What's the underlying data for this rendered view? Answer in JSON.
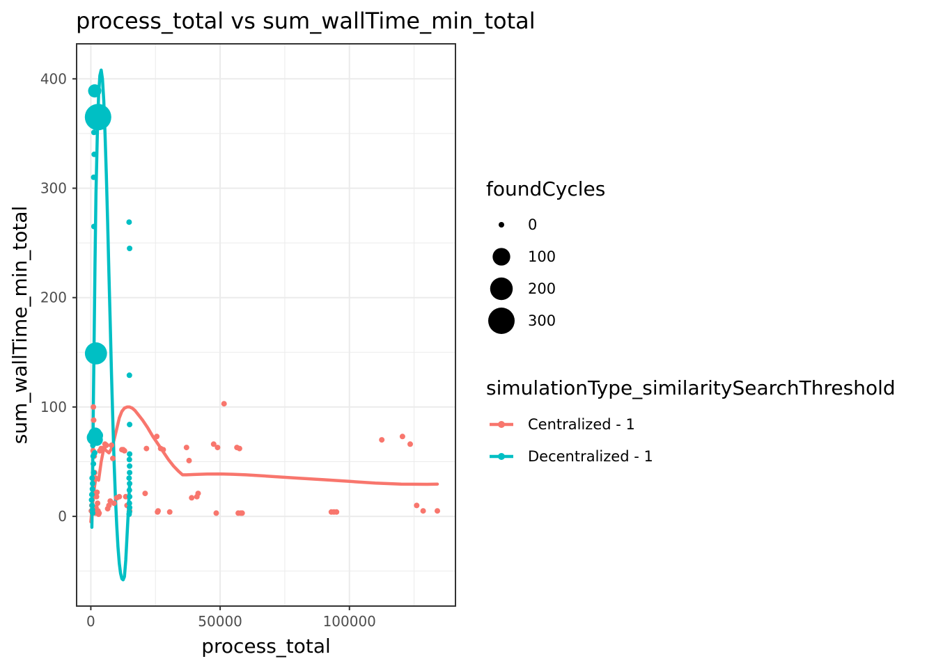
{
  "chart_data": {
    "type": "scatter",
    "title": "process_total  vs  sum_wallTime_min_total",
    "xlabel": "process_total",
    "ylabel": "sum_wallTime_min_total",
    "xlim": [
      -5500,
      141000
    ],
    "ylim": [
      -82,
      432
    ],
    "x_ticks": [
      0,
      50000,
      100000
    ],
    "x_tick_labels": [
      "0",
      "50000",
      "100000"
    ],
    "y_ticks": [
      0,
      100,
      200,
      300,
      400
    ],
    "y_tick_labels": [
      "0",
      "100",
      "200",
      "300",
      "400"
    ],
    "grid": true,
    "size_legend": {
      "title": "foundCycles",
      "entries": [
        {
          "label": "0",
          "value": 0
        },
        {
          "label": "100",
          "value": 100
        },
        {
          "label": "200",
          "value": 200
        },
        {
          "label": "300",
          "value": 300
        }
      ]
    },
    "color_legend": {
      "title": "simulationType_similaritySearchThreshold",
      "placement": "right"
    },
    "series": [
      {
        "name": "Centralized - 1",
        "color": "#F8766D",
        "points": [
          [
            200,
            5,
            0
          ],
          [
            400,
            10,
            0
          ],
          [
            500,
            15,
            0
          ],
          [
            600,
            20,
            0
          ],
          [
            700,
            25,
            0
          ],
          [
            800,
            30,
            0
          ],
          [
            900,
            60,
            0
          ],
          [
            1000,
            100,
            0
          ],
          [
            1100,
            88,
            0
          ],
          [
            1200,
            70,
            0
          ],
          [
            1300,
            55,
            0
          ],
          [
            1500,
            40,
            0
          ],
          [
            1700,
            35,
            0
          ],
          [
            1800,
            3,
            0
          ],
          [
            2000,
            8,
            0
          ],
          [
            2200,
            18,
            0
          ],
          [
            2400,
            22,
            0
          ],
          [
            2600,
            12,
            0
          ],
          [
            2800,
            5,
            0
          ],
          [
            3000,
            2,
            0
          ],
          [
            3200,
            3,
            0
          ],
          [
            3500,
            60,
            0
          ],
          [
            4000,
            62,
            0
          ],
          [
            5000,
            62,
            0
          ],
          [
            5500,
            66,
            0
          ],
          [
            6000,
            65,
            0
          ],
          [
            6500,
            7,
            0
          ],
          [
            7000,
            10,
            0
          ],
          [
            7500,
            14,
            0
          ],
          [
            8000,
            65,
            0
          ],
          [
            8500,
            53,
            0
          ],
          [
            9000,
            12,
            0
          ],
          [
            10000,
            17,
            0
          ],
          [
            11000,
            18,
            0
          ],
          [
            12000,
            61,
            0
          ],
          [
            12500,
            61,
            0
          ],
          [
            13000,
            60,
            0
          ],
          [
            13500,
            18,
            0
          ],
          [
            14000,
            10,
            0
          ],
          [
            15000,
            5,
            0
          ],
          [
            21000,
            21,
            0
          ],
          [
            21500,
            62,
            0
          ],
          [
            25500,
            73,
            0
          ],
          [
            25800,
            4,
            0
          ],
          [
            26000,
            5,
            0
          ],
          [
            27000,
            62,
            0
          ],
          [
            28000,
            61,
            0
          ],
          [
            30500,
            4,
            0
          ],
          [
            37000,
            63,
            0
          ],
          [
            38000,
            51,
            0
          ],
          [
            39000,
            17,
            0
          ],
          [
            41000,
            18,
            0
          ],
          [
            41500,
            21,
            0
          ],
          [
            47500,
            66,
            0
          ],
          [
            48500,
            3,
            0
          ],
          [
            49000,
            63,
            0
          ],
          [
            51500,
            103,
            0
          ],
          [
            56500,
            63,
            0
          ],
          [
            57000,
            3,
            0
          ],
          [
            57500,
            62,
            0
          ],
          [
            58000,
            3,
            0
          ],
          [
            58500,
            3,
            0
          ],
          [
            93000,
            4,
            0
          ],
          [
            94000,
            4,
            0
          ],
          [
            95000,
            4,
            0
          ],
          [
            112500,
            70,
            0
          ],
          [
            120500,
            73,
            0
          ],
          [
            123500,
            66,
            0
          ],
          [
            126000,
            10,
            0
          ],
          [
            128500,
            5,
            0
          ],
          [
            134000,
            5,
            0
          ]
        ],
        "smooth": [
          [
            0,
            -5
          ],
          [
            1000,
            20
          ],
          [
            2000,
            36
          ],
          [
            3000,
            33
          ],
          [
            4000,
            50
          ],
          [
            5000,
            62
          ],
          [
            6000,
            60
          ],
          [
            7000,
            58
          ],
          [
            8000,
            62
          ],
          [
            9000,
            70
          ],
          [
            10000,
            80
          ],
          [
            11000,
            90
          ],
          [
            12000,
            96
          ],
          [
            13000,
            99
          ],
          [
            14000,
            100
          ],
          [
            15000,
            100
          ],
          [
            16000,
            99
          ],
          [
            17000,
            97
          ],
          [
            18000,
            94
          ],
          [
            19000,
            91
          ],
          [
            20000,
            88
          ],
          [
            22000,
            81
          ],
          [
            24000,
            73
          ],
          [
            26000,
            66
          ],
          [
            28000,
            59
          ],
          [
            30000,
            52
          ],
          [
            32000,
            46
          ],
          [
            34000,
            41
          ],
          [
            35500,
            38
          ],
          [
            37000,
            38
          ],
          [
            40000,
            38.3
          ],
          [
            45000,
            38.7
          ],
          [
            50000,
            38.8
          ],
          [
            55000,
            38.5
          ],
          [
            60000,
            38
          ],
          [
            70000,
            36.5
          ],
          [
            80000,
            35
          ],
          [
            90000,
            33.5
          ],
          [
            100000,
            32
          ],
          [
            110000,
            30.5
          ],
          [
            120000,
            29.5
          ],
          [
            130000,
            29.3
          ],
          [
            134000,
            29.5
          ]
        ]
      },
      {
        "name": "Decentralized - 1",
        "color": "#00BFC4",
        "points": [
          [
            1200,
            351,
            0
          ],
          [
            1300,
            331,
            0
          ],
          [
            1100,
            310,
            0
          ],
          [
            1200,
            265,
            0
          ],
          [
            1500,
            389,
            40
          ],
          [
            2800,
            365,
            300
          ],
          [
            2200,
            363,
            30
          ],
          [
            2000,
            149,
            190
          ],
          [
            800,
            65,
            0
          ],
          [
            900,
            55,
            0
          ],
          [
            1000,
            48,
            0
          ],
          [
            1100,
            40,
            0
          ],
          [
            500,
            35,
            0
          ],
          [
            700,
            30,
            0
          ],
          [
            600,
            25,
            0
          ],
          [
            400,
            20,
            0
          ],
          [
            300,
            15,
            0
          ],
          [
            500,
            10,
            0
          ],
          [
            600,
            6,
            0
          ],
          [
            700,
            3,
            0
          ],
          [
            1300,
            72,
            60
          ],
          [
            1700,
            75,
            45
          ],
          [
            2300,
            70,
            30
          ],
          [
            2600,
            74,
            20
          ],
          [
            900,
            68,
            0
          ],
          [
            1500,
            58,
            0
          ],
          [
            14800,
            269,
            0
          ],
          [
            15000,
            245,
            0
          ],
          [
            14900,
            129,
            0
          ],
          [
            15000,
            84,
            0
          ],
          [
            15000,
            57,
            0
          ],
          [
            14900,
            52,
            0
          ],
          [
            15000,
            46,
            0
          ],
          [
            15000,
            40,
            0
          ],
          [
            14800,
            35,
            0
          ],
          [
            15000,
            30,
            0
          ],
          [
            14900,
            24,
            0
          ],
          [
            15000,
            18,
            0
          ],
          [
            14900,
            12,
            0
          ],
          [
            15000,
            8,
            0
          ],
          [
            14900,
            4,
            0
          ],
          [
            14800,
            2,
            0
          ]
        ],
        "smooth": [
          [
            400,
            -10
          ],
          [
            600,
            20
          ],
          [
            800,
            60
          ],
          [
            1000,
            105
          ],
          [
            1300,
            170
          ],
          [
            1600,
            230
          ],
          [
            2000,
            295
          ],
          [
            2500,
            348
          ],
          [
            3000,
            385
          ],
          [
            3500,
            403
          ],
          [
            4000,
            408
          ],
          [
            4500,
            400
          ],
          [
            5000,
            380
          ],
          [
            5500,
            350
          ],
          [
            6000,
            312
          ],
          [
            6500,
            268
          ],
          [
            7000,
            222
          ],
          [
            7500,
            176
          ],
          [
            8000,
            130
          ],
          [
            8500,
            88
          ],
          [
            9000,
            50
          ],
          [
            9500,
            18
          ],
          [
            10000,
            -8
          ],
          [
            10500,
            -28
          ],
          [
            11000,
            -43
          ],
          [
            11500,
            -52
          ],
          [
            12000,
            -57
          ],
          [
            12500,
            -58
          ],
          [
            13000,
            -55
          ],
          [
            13500,
            -40
          ],
          [
            14000,
            -18
          ],
          [
            14500,
            5
          ],
          [
            15000,
            30
          ]
        ]
      }
    ]
  }
}
